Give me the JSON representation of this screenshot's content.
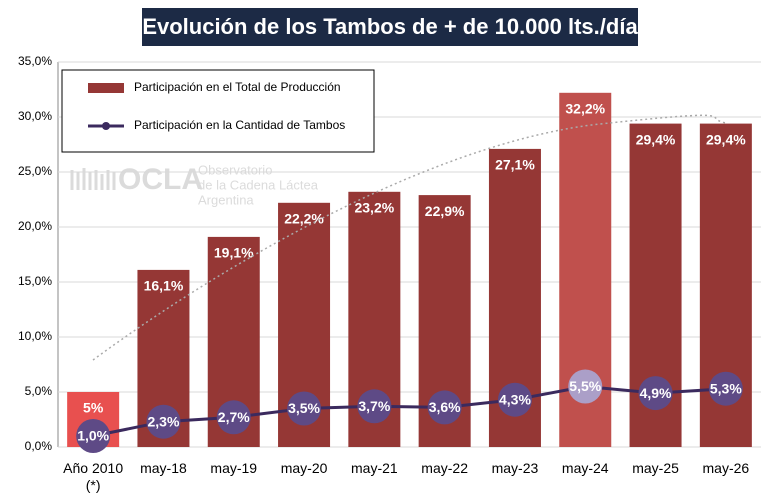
{
  "chart_data": {
    "type": "combo",
    "title": "Evolución de los Tambos de + de 10.000 lts./día",
    "categories": [
      "Año 2010 (*)",
      "may-18",
      "may-19",
      "may-20",
      "may-21",
      "may-22",
      "may-23",
      "may-24",
      "may-25",
      "may-26"
    ],
    "ylim": [
      0,
      35
    ],
    "yticks": [
      {
        "value": 0,
        "label": "0,0%"
      },
      {
        "value": 5,
        "label": "5,0%"
      },
      {
        "value": 10,
        "label": "10,0%"
      },
      {
        "value": 15,
        "label": "15,0%"
      },
      {
        "value": 20,
        "label": "20,0%"
      },
      {
        "value": 25,
        "label": "25,0%"
      },
      {
        "value": 30,
        "label": "30,0%"
      },
      {
        "value": 35,
        "label": "35,0%"
      }
    ],
    "grid": true,
    "legend": "top-left",
    "series": [
      {
        "name": "Participación en el Total de Producción",
        "type": "bar",
        "color": "#953735",
        "colors": [
          "#e8504f",
          "#953735",
          "#953735",
          "#953735",
          "#953735",
          "#953735",
          "#953735",
          "#c0504d",
          "#953735",
          "#953735"
        ],
        "values": [
          5,
          16.1,
          19.1,
          22.2,
          23.2,
          22.9,
          27.1,
          32.2,
          29.4,
          29.4
        ],
        "value_labels": [
          "5%",
          "16,1%",
          "19,1%",
          "22,2%",
          "23,2%",
          "22,9%",
          "27,1%",
          "32,2%",
          "29,4%",
          "29,4%"
        ]
      },
      {
        "name": "Participación en la Cantidad de Tambos",
        "type": "line",
        "color": "#3b2a5e",
        "marker_colors": [
          "#5e4a86",
          "#5e4a86",
          "#5e4a86",
          "#5e4a86",
          "#5e4a86",
          "#5e4a86",
          "#5e4a86",
          "#ab9fc8",
          "#5e4a86",
          "#5e4a86"
        ],
        "values": [
          1.0,
          2.3,
          2.7,
          3.5,
          3.7,
          3.6,
          4.3,
          5.5,
          4.9,
          5.3
        ],
        "value_labels": [
          "1,0%",
          "2,3%",
          "2,7%",
          "3,5%",
          "3,7%",
          "3,6%",
          "4,3%",
          "5,5%",
          "4,9%",
          "5,3%"
        ]
      }
    ]
  },
  "watermark": {
    "logo": "OCLA",
    "lines": [
      "Observatorio",
      "de la Cadena Láctea",
      "Argentina"
    ]
  }
}
